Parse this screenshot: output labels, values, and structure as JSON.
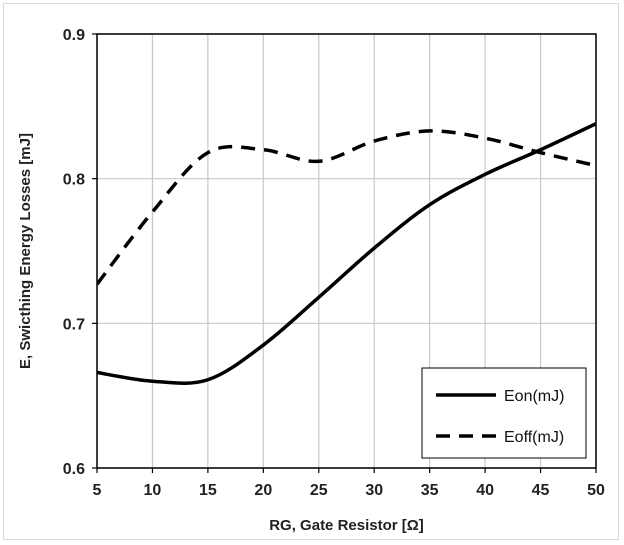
{
  "chart_data": {
    "type": "line",
    "title": "",
    "xlabel": "RG, Gate Resistor [Ω]",
    "ylabel": "E, Swicthing Energy Losses [mJ]",
    "xlim": [
      5,
      50
    ],
    "ylim": [
      0.6,
      0.9
    ],
    "x_ticks": [
      "5",
      "10",
      "15",
      "20",
      "25",
      "30",
      "35",
      "40",
      "45",
      "50"
    ],
    "y_ticks": [
      "0.6",
      "0.7",
      "0.8",
      "0.9"
    ],
    "grid": true,
    "legend_position": "bottom-right",
    "series": [
      {
        "name": "Eon(mJ)",
        "style": "solid",
        "color": "#000000",
        "x": [
          5,
          10,
          15,
          20,
          25,
          30,
          35,
          40,
          45,
          50
        ],
        "y": [
          0.666,
          0.66,
          0.661,
          0.685,
          0.718,
          0.752,
          0.782,
          0.803,
          0.82,
          0.838
        ]
      },
      {
        "name": "Eoff(mJ)",
        "style": "dashed",
        "color": "#000000",
        "x": [
          5,
          10,
          15,
          20,
          25,
          30,
          35,
          40,
          45,
          50
        ],
        "y": [
          0.727,
          0.777,
          0.818,
          0.82,
          0.812,
          0.826,
          0.833,
          0.828,
          0.818,
          0.809
        ]
      }
    ]
  }
}
